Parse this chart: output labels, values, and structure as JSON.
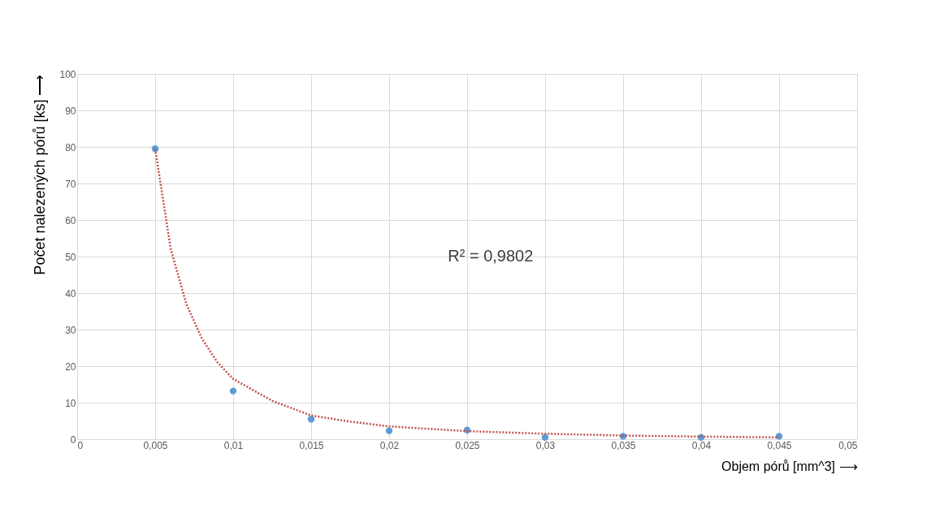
{
  "chart_data": {
    "type": "scatter",
    "xlabel": "Objem pórů  [mm^3]        ⟶",
    "ylabel": "Počet nalezených pórů [ks] ⟶",
    "x": [
      0.005,
      0.01,
      0.015,
      0.02,
      0.025,
      0.03,
      0.035,
      0.04,
      0.045
    ],
    "series": [
      {
        "color": "#5b9bd5",
        "marker": "circle",
        "values": [
          79.5,
          13.2,
          5.5,
          2.3,
          2.5,
          0.5,
          0.8,
          0.5,
          0.8
        ]
      },
      {
        "type": "line",
        "color": "#c0504d",
        "line_style": "dotted",
        "marker": "none",
        "x": [
          0.005,
          0.006,
          0.007,
          0.008,
          0.009,
          0.01,
          0.0125,
          0.015,
          0.0175,
          0.02,
          0.025,
          0.03,
          0.035,
          0.04,
          0.045
        ],
        "values": [
          79.5,
          52,
          37,
          27.5,
          21,
          16.5,
          10.5,
          6.5,
          4.8,
          3.5,
          2.2,
          1.5,
          1.0,
          0.7,
          0.5
        ]
      }
    ],
    "annotations": [
      "R² = 0,9802"
    ],
    "xlim": [
      0,
      0.05
    ],
    "xticks": [
      0,
      {
        "value": 0.005,
        "label": "0,005"
      },
      {
        "value": 0.01,
        "label": "0,01"
      },
      {
        "value": 0.015,
        "label": "0,015"
      },
      {
        "value": 0.02,
        "label": "0,02"
      },
      {
        "value": 0.025,
        "label": "0,025"
      },
      {
        "value": 0.03,
        "label": "0,03"
      },
      {
        "value": 0.035,
        "label": "0,035"
      },
      {
        "value": 0.04,
        "label": "0,04"
      },
      {
        "value": 0.045,
        "label": "0,045"
      },
      {
        "value": 0.05,
        "label": "0,05"
      }
    ],
    "ylim": [
      0,
      100
    ],
    "yticks": [
      0,
      10,
      20,
      30,
      40,
      50,
      60,
      70,
      80,
      90,
      100
    ],
    "grid": true,
    "legend": false
  }
}
